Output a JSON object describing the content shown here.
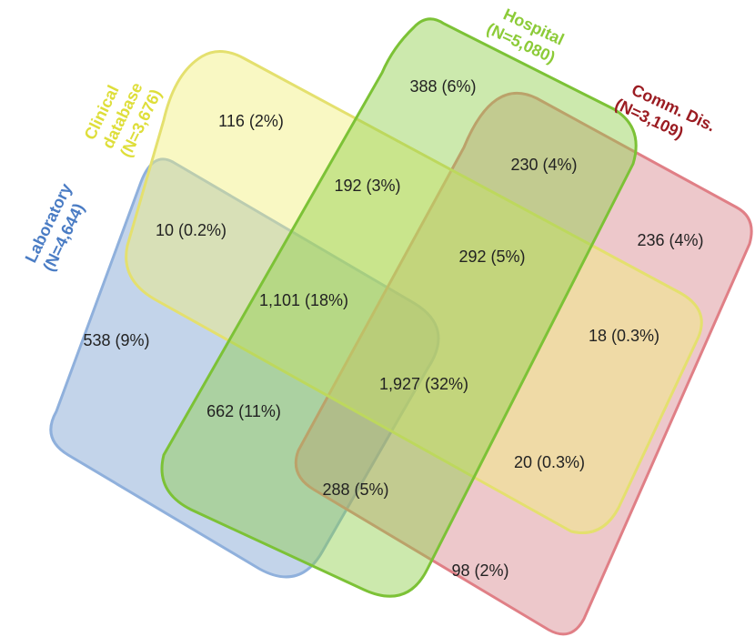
{
  "chart_data": {
    "type": "venn",
    "sets": [
      {
        "id": "laboratory",
        "line1": "Laboratory",
        "line2": "(N=4,644)",
        "color": "#4a7cc4",
        "fill": "#7a9fd0",
        "stroke": "#8fb0dc"
      },
      {
        "id": "clinical",
        "line1": "Clinical",
        "line2": "database",
        "line3": "(N=3,676)",
        "color": "#dede3a",
        "fill": "#f2f07a",
        "stroke": "#e4e06e"
      },
      {
        "id": "hospital",
        "line1": "Hospital",
        "line2": "(N=5,080)",
        "color": "#8ccb38",
        "fill": "#8fce4a",
        "stroke": "#7cc236"
      },
      {
        "id": "comm",
        "line1": "Comm. Dis.",
        "line2": "(N=3,109)",
        "color": "#9b1c22",
        "fill": "#d6868c",
        "stroke": "#e07f86"
      }
    ],
    "regions": [
      {
        "sets": [
          "hospital"
        ],
        "label": "388 (6%)"
      },
      {
        "sets": [
          "clinical"
        ],
        "label": "116 (2%)"
      },
      {
        "sets": [
          "hospital",
          "comm"
        ],
        "label": "230 (4%)"
      },
      {
        "sets": [
          "clinical",
          "hospital"
        ],
        "label": "192 (3%)"
      },
      {
        "sets": [
          "laboratory",
          "clinical"
        ],
        "label": "10 (0.2%)"
      },
      {
        "sets": [
          "comm"
        ],
        "label": "236 (4%)"
      },
      {
        "sets": [
          "clinical",
          "hospital",
          "comm"
        ],
        "label": "292 (5%)"
      },
      {
        "sets": [
          "laboratory",
          "clinical",
          "hospital"
        ],
        "label": "1,101 (18%)"
      },
      {
        "sets": [
          "laboratory"
        ],
        "label": "538 (9%)"
      },
      {
        "sets": [
          "clinical",
          "comm"
        ],
        "label": "18 (0.3%)"
      },
      {
        "sets": [
          "laboratory",
          "clinical",
          "hospital",
          "comm"
        ],
        "label": "1,927 (32%)"
      },
      {
        "sets": [
          "laboratory",
          "hospital"
        ],
        "label": "662 (11%)"
      },
      {
        "sets": [
          "laboratory",
          "clinical",
          "comm"
        ],
        "label": "20 (0.3%)"
      },
      {
        "sets": [
          "laboratory",
          "hospital",
          "comm"
        ],
        "label": "288 (5%)"
      },
      {
        "sets": [
          "laboratory",
          "comm"
        ],
        "label": "98 (2%)"
      }
    ]
  }
}
